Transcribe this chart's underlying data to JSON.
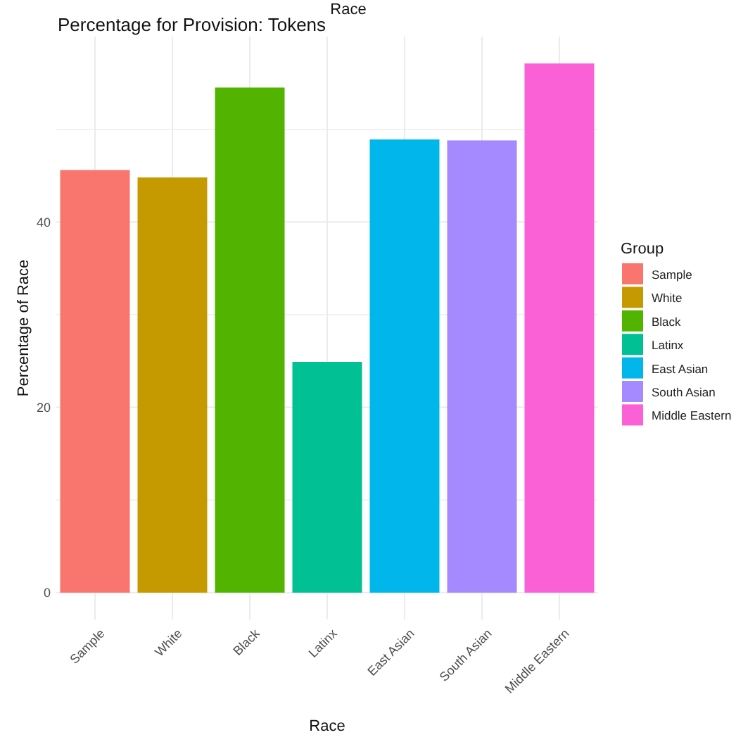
{
  "chart_data": {
    "type": "bar",
    "title": "Percentage for Provision: Tokens",
    "xlabel": "Race",
    "ylabel": "Percentage of Race",
    "legend_title": "Group",
    "annotations": [
      "Race"
    ],
    "categories": [
      "Sample",
      "White",
      "Black",
      "Latinx",
      "East Asian",
      "South Asian",
      "Middle Eastern"
    ],
    "series": [
      {
        "name": "Sample",
        "color": "#f8766d",
        "values": [
          45.6,
          null,
          null,
          null,
          null,
          null,
          null
        ]
      },
      {
        "name": "White",
        "color": "#c49a00",
        "values": [
          null,
          44.8,
          null,
          null,
          null,
          null,
          null
        ]
      },
      {
        "name": "Black",
        "color": "#53b400",
        "values": [
          null,
          null,
          54.5,
          null,
          null,
          null,
          null
        ]
      },
      {
        "name": "Latinx",
        "color": "#00c094",
        "values": [
          null,
          null,
          null,
          24.9,
          null,
          null,
          null
        ]
      },
      {
        "name": "East Asian",
        "color": "#00b6eb",
        "values": [
          null,
          null,
          null,
          null,
          48.9,
          null,
          null
        ]
      },
      {
        "name": "South Asian",
        "color": "#a58aff",
        "values": [
          null,
          null,
          null,
          null,
          null,
          48.8,
          null
        ]
      },
      {
        "name": "Middle Eastern",
        "color": "#fb61d7",
        "values": [
          null,
          null,
          null,
          null,
          null,
          null,
          57.1
        ]
      }
    ],
    "ylim": [
      -2.9,
      60
    ],
    "yticks": [
      0,
      {
        "value": 10,
        "label": null
      },
      20,
      {
        "value": 30,
        "label": null
      },
      40,
      {
        "value": 50,
        "label": null
      }
    ],
    "grid": true,
    "legend": "right"
  }
}
